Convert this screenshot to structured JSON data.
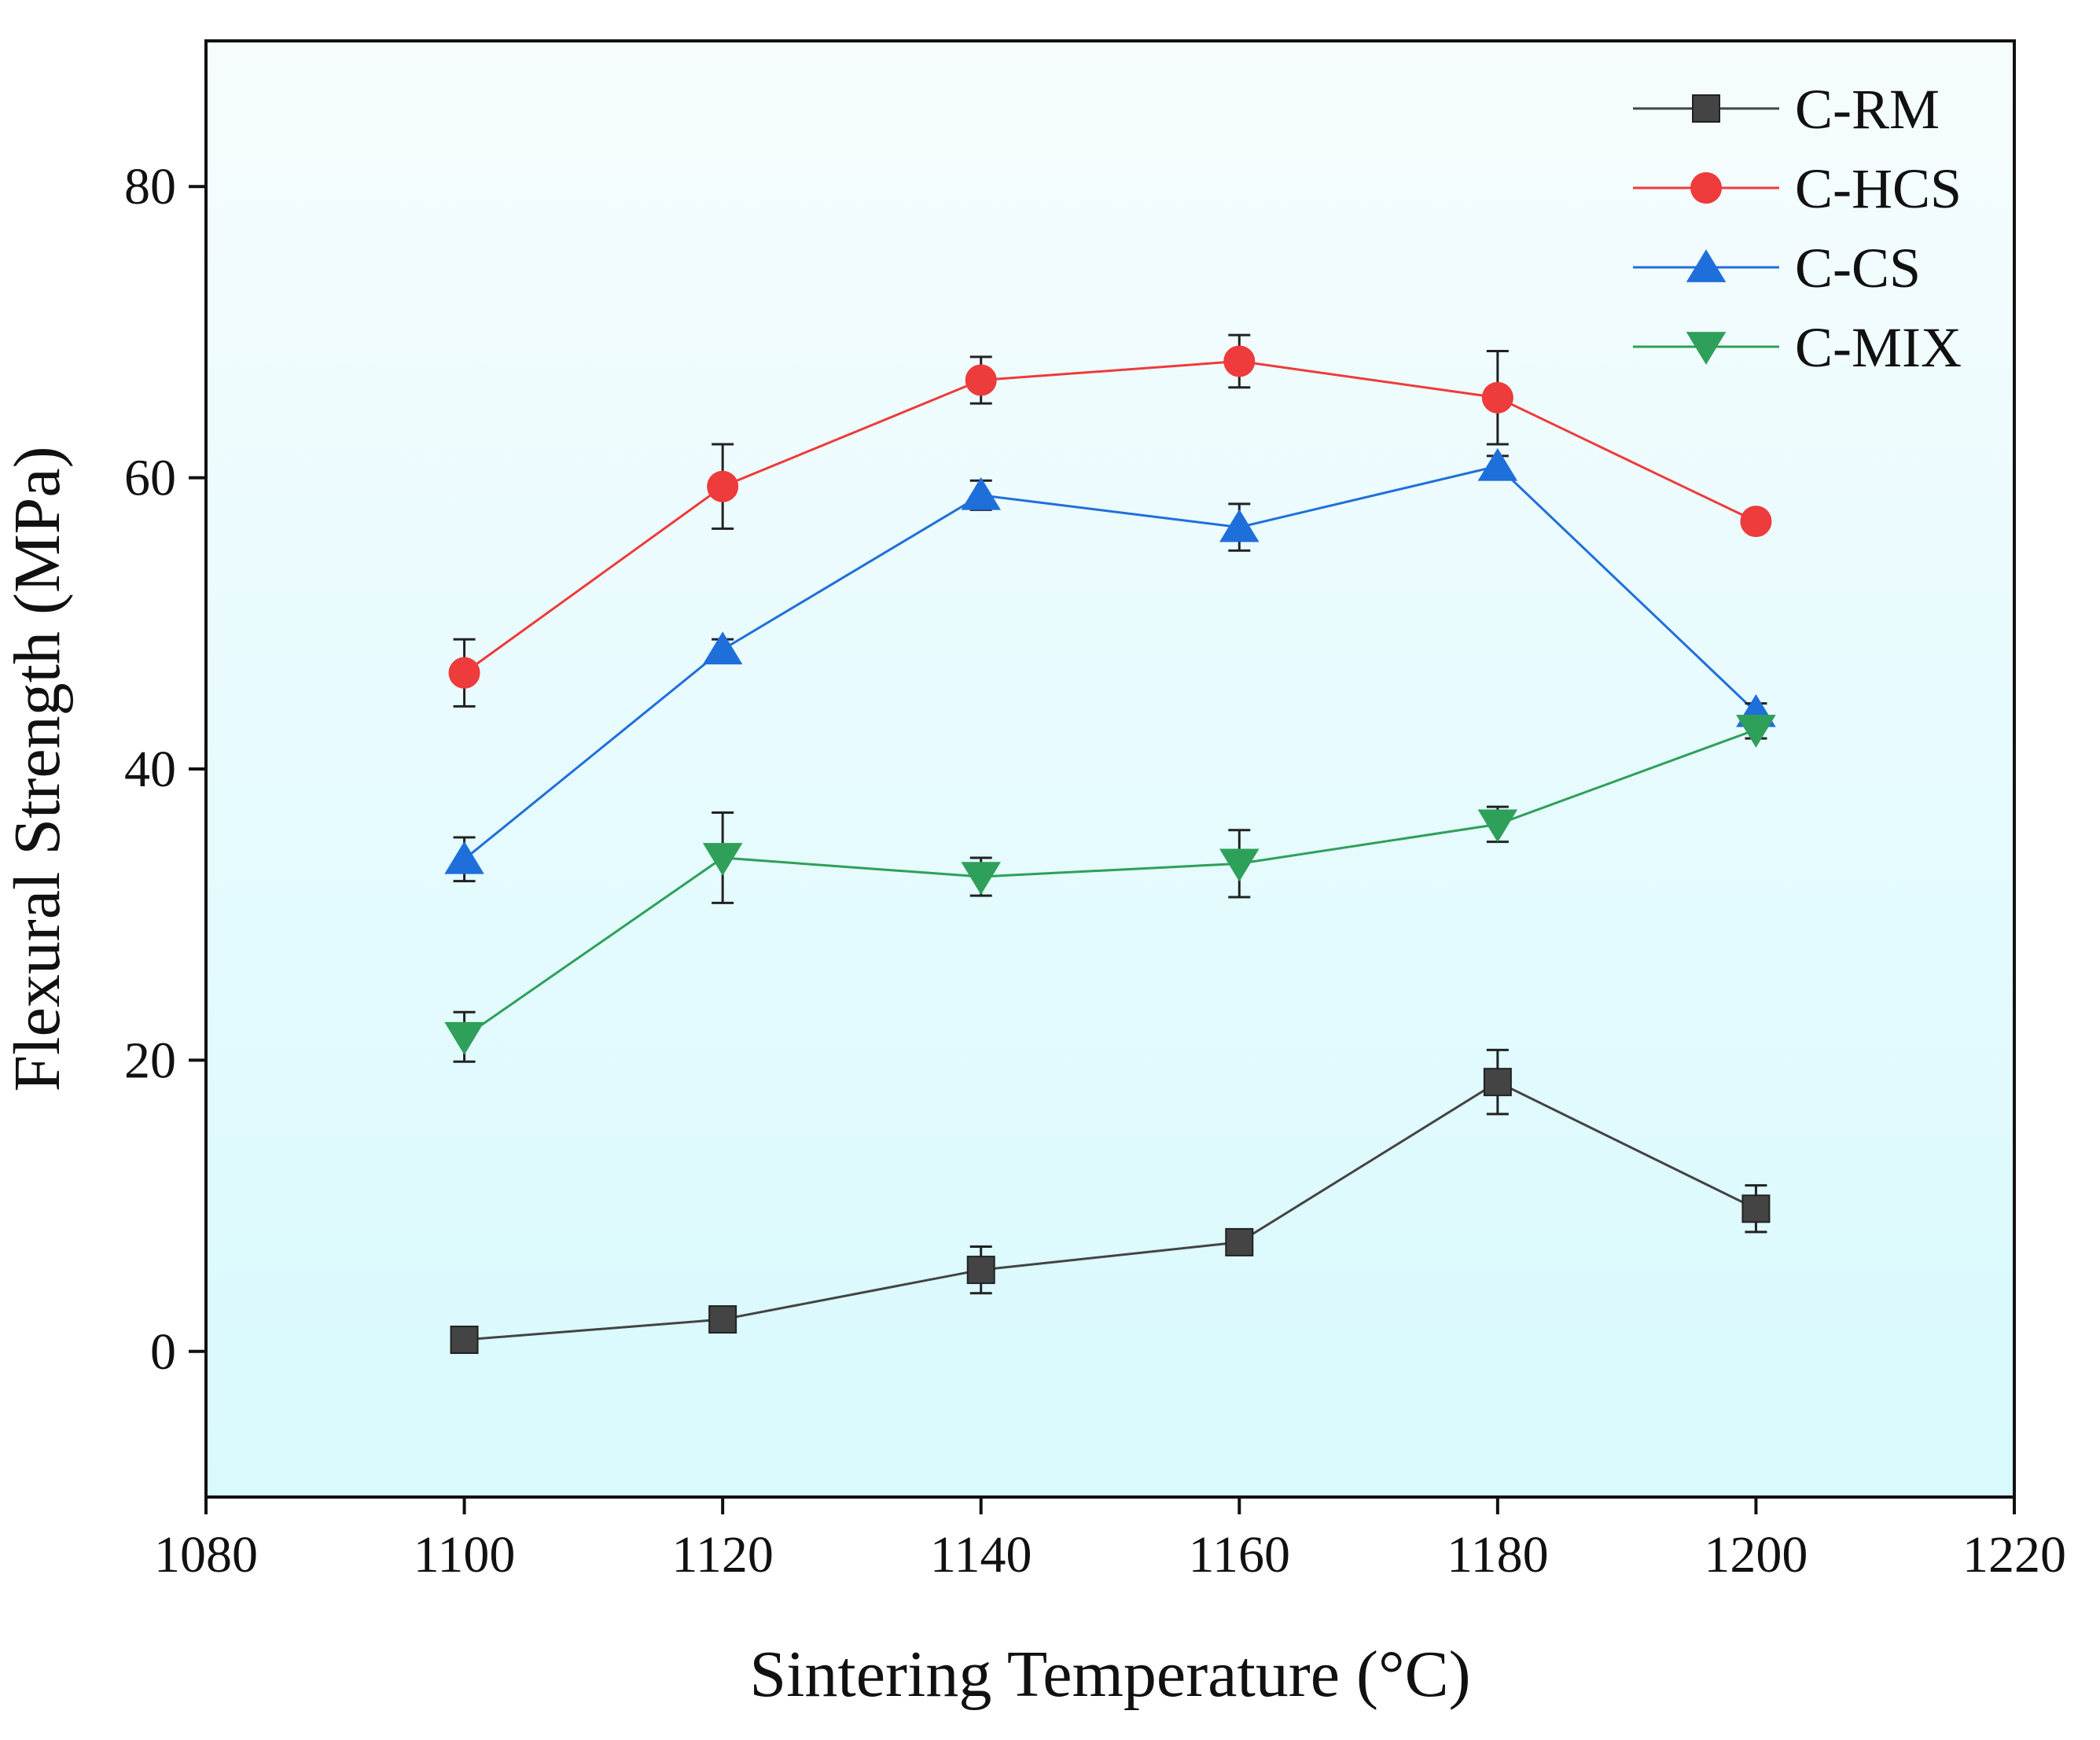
{
  "chart_data": {
    "type": "line",
    "title": "",
    "xlabel": "Sintering Temperature (°C)",
    "ylabel": "Flexural Strength (MPa)",
    "xlim": [
      1080,
      1220
    ],
    "ylim": [
      -10,
      90
    ],
    "x_ticks": [
      1080,
      1100,
      1120,
      1140,
      1160,
      1180,
      1200,
      1220
    ],
    "y_ticks": [
      0,
      20,
      40,
      60,
      80
    ],
    "grid": false,
    "legend_position": "top-right",
    "background_gradient": [
      "#f6fcfe",
      "#d8fafd"
    ],
    "x": [
      1100,
      1120,
      1140,
      1160,
      1180,
      1200
    ],
    "series": [
      {
        "name": "C-RM",
        "color": "#444444",
        "marker": "square",
        "values": [
          0.8,
          2.2,
          5.6,
          7.5,
          18.5,
          9.8
        ],
        "errors": [
          0.6,
          0.7,
          1.6,
          0.7,
          2.2,
          1.6
        ]
      },
      {
        "name": "C-HCS",
        "color": "#ee3b3b",
        "marker": "circle",
        "values": [
          46.6,
          59.4,
          66.7,
          68.0,
          65.5,
          57.0
        ],
        "errors": [
          2.3,
          2.9,
          1.6,
          1.8,
          3.2,
          0.6
        ]
      },
      {
        "name": "C-CS",
        "color": "#1f6fdb",
        "marker": "triangle-up",
        "values": [
          33.8,
          48.2,
          58.8,
          56.6,
          60.8,
          43.9
        ],
        "errors": [
          1.5,
          0.7,
          1.0,
          1.6,
          0.7,
          0.6
        ]
      },
      {
        "name": "C-MIX",
        "color": "#2ea05a",
        "marker": "triangle-down",
        "values": [
          21.6,
          33.9,
          32.6,
          33.5,
          36.2,
          42.7
        ],
        "errors": [
          1.7,
          3.1,
          1.3,
          2.3,
          1.2,
          0.6
        ]
      }
    ]
  }
}
